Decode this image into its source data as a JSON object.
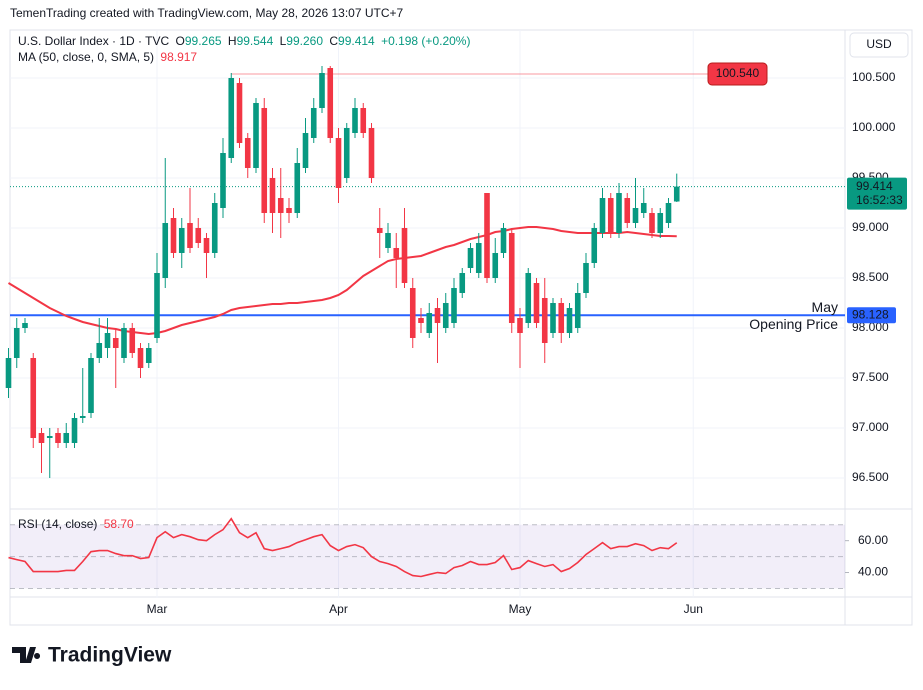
{
  "header": "TemenTrading created with TradingView.com, May 28, 2026 13:07 UTC+7",
  "chart_data": {
    "type": "candlestick",
    "legend": {
      "symbol": "U.S. Dollar Index · 1D · TVC",
      "items": [
        {
          "label": "O",
          "value": 99.265
        },
        {
          "label": "H",
          "value": 99.544
        },
        {
          "label": "L",
          "value": {
            "value": 99.26,
            "label": "99.260"
          }
        },
        {
          "label": "C",
          "value": 99.414
        }
      ],
      "change": "+0.198 (+0.20%)"
    },
    "currency": "USD",
    "categories": [
      null,
      null,
      null,
      null,
      null,
      null,
      null,
      null,
      null,
      null,
      null,
      null,
      null,
      null,
      null,
      null,
      null,
      null,
      "Mar",
      null,
      null,
      null,
      null,
      null,
      null,
      null,
      null,
      null,
      null,
      null,
      null,
      null,
      null,
      null,
      null,
      null,
      null,
      null,
      null,
      null,
      "Apr",
      null,
      null,
      null,
      null,
      null,
      null,
      null,
      null,
      null,
      null,
      null,
      null,
      null,
      null,
      null,
      null,
      null,
      null,
      null,
      null,
      null,
      "May",
      null,
      null,
      null,
      null,
      null,
      null,
      null,
      null,
      null,
      null,
      null,
      null,
      null,
      null,
      null,
      null,
      null,
      null,
      null,
      null,
      "Jun"
    ],
    "open": [
      97.4,
      97.7,
      98.0,
      97.7,
      96.95,
      96.9,
      96.95,
      96.85,
      96.85,
      97.1,
      97.15,
      97.7,
      97.8,
      97.9,
      97.7,
      98.0,
      97.8,
      97.65,
      97.9,
      98.5,
      99.1,
      98.75,
      99.05,
      99.0,
      98.9,
      98.75,
      99.2,
      99.7,
      100.45,
      99.9,
      99.6,
      100.2,
      99.5,
      99.3,
      99.2,
      99.15,
      99.6,
      99.9,
      100.2,
      100.6,
      99.9,
      99.5,
      99.95,
      100.2,
      100.0,
      99.0,
      98.8,
      98.8,
      99.0,
      98.4,
      98.1,
      97.95,
      98.2,
      98.0,
      98.05,
      98.35,
      98.6,
      98.55,
      99.35,
      98.5,
      98.75,
      98.95,
      98.1,
      98.05,
      98.45,
      98.3,
      97.95,
      98.25,
      97.95,
      98.0,
      98.35,
      98.65,
      98.95,
      99.3,
      98.95,
      99.3,
      99.05,
      99.15,
      99.15,
      98.95,
      99.05,
      99.265,
      null,
      null
    ],
    "high": [
      97.8,
      98.1,
      98.1,
      97.75,
      97.0,
      97.0,
      97.0,
      97.05,
      97.15,
      97.6,
      97.75,
      98.1,
      98.1,
      98.0,
      98.05,
      98.05,
      97.85,
      97.85,
      98.75,
      99.7,
      99.2,
      99.1,
      99.4,
      99.1,
      98.95,
      99.35,
      99.9,
      100.55,
      100.5,
      99.95,
      100.3,
      100.3,
      99.6,
      99.6,
      99.3,
      99.8,
      100.1,
      100.3,
      100.62,
      100.62,
      100.0,
      100.05,
      100.3,
      100.25,
      100.05,
      99.2,
      99.05,
      98.95,
      99.2,
      98.5,
      98.2,
      98.25,
      98.3,
      98.35,
      98.5,
      98.6,
      98.85,
      98.95,
      99.35,
      98.9,
      99.05,
      99.0,
      98.2,
      98.6,
      98.5,
      98.5,
      98.3,
      98.3,
      98.25,
      98.45,
      98.75,
      99.05,
      99.4,
      99.35,
      99.45,
      99.35,
      99.5,
      99.4,
      99.2,
      99.2,
      99.3,
      99.544,
      null,
      null
    ],
    "low": [
      97.3,
      97.6,
      97.95,
      96.8,
      96.55,
      96.5,
      96.8,
      96.8,
      96.8,
      97.05,
      97.1,
      97.65,
      97.7,
      97.4,
      97.65,
      97.7,
      97.5,
      97.6,
      97.85,
      98.4,
      98.7,
      98.6,
      98.75,
      98.8,
      98.5,
      98.7,
      99.1,
      99.65,
      99.8,
      99.5,
      99.55,
      99.05,
      98.95,
      98.9,
      99.05,
      99.1,
      99.55,
      99.85,
      100.15,
      99.85,
      99.25,
      99.45,
      99.9,
      99.9,
      99.45,
      98.7,
      98.75,
      98.4,
      98.4,
      97.8,
      97.95,
      97.9,
      97.65,
      97.95,
      98.0,
      98.3,
      98.55,
      98.5,
      98.45,
      98.45,
      98.7,
      97.95,
      97.6,
      98.0,
      98.0,
      97.65,
      97.9,
      97.85,
      97.9,
      97.95,
      98.3,
      98.6,
      98.9,
      98.9,
      98.9,
      99.0,
      99.0,
      99.1,
      98.9,
      98.9,
      99.0,
      99.26,
      null,
      null
    ],
    "close": [
      97.7,
      98.0,
      98.05,
      96.9,
      96.85,
      96.92,
      96.85,
      96.95,
      97.1,
      97.12,
      97.7,
      97.85,
      97.95,
      97.8,
      98.0,
      97.75,
      97.6,
      97.8,
      98.55,
      99.05,
      98.75,
      99.0,
      98.8,
      98.85,
      98.75,
      99.25,
      99.75,
      100.5,
      99.85,
      99.6,
      100.25,
      99.15,
      99.15,
      99.15,
      99.15,
      99.65,
      99.95,
      100.2,
      100.55,
      99.9,
      99.4,
      100.0,
      100.2,
      99.95,
      99.5,
      98.95,
      98.95,
      98.7,
      98.45,
      97.9,
      98.05,
      98.15,
      98.05,
      98.25,
      98.4,
      98.55,
      98.8,
      98.85,
      98.5,
      98.75,
      99.0,
      98.05,
      97.95,
      98.55,
      98.05,
      97.85,
      98.25,
      97.95,
      98.2,
      98.35,
      98.65,
      99.0,
      99.3,
      98.95,
      99.35,
      99.05,
      99.2,
      99.25,
      98.95,
      99.15,
      99.25,
      99.414,
      null,
      null
    ],
    "up_color": "#089981",
    "down_color": "#f23645",
    "ma": {
      "name": "MA (50, close, 0, SMA, 5)",
      "last": 98.917,
      "color": "#f23645",
      "values": [
        98.45,
        98.4,
        98.35,
        98.3,
        98.25,
        98.2,
        98.16,
        98.12,
        98.09,
        98.06,
        98.04,
        98.02,
        98.0,
        97.99,
        97.97,
        97.96,
        97.95,
        97.94,
        97.95,
        97.97,
        98.0,
        98.03,
        98.05,
        98.07,
        98.09,
        98.11,
        98.14,
        98.18,
        98.2,
        98.21,
        98.22,
        98.23,
        98.24,
        98.24,
        98.25,
        98.25,
        98.26,
        98.27,
        98.28,
        98.3,
        98.33,
        98.38,
        98.45,
        98.52,
        98.57,
        98.62,
        98.67,
        98.69,
        98.7,
        98.71,
        98.72,
        98.75,
        98.78,
        98.81,
        98.83,
        98.86,
        98.89,
        98.91,
        98.93,
        98.96,
        98.97,
        98.99,
        99.0,
        99.01,
        99.01,
        99.0,
        98.99,
        98.97,
        98.96,
        98.95,
        98.95,
        98.95,
        98.95,
        98.95,
        98.95,
        98.96,
        98.95,
        98.94,
        98.93,
        98.92,
        98.92,
        98.917,
        null,
        null
      ]
    },
    "ylim": [
      96.2,
      100.98
    ],
    "yticks": [
      {
        "value": 96.5,
        "label": "96.500"
      },
      {
        "value": 97,
        "label": "97.000"
      },
      {
        "value": 97.5,
        "label": "97.500"
      },
      {
        "value": 98,
        "label": "98.000"
      },
      {
        "value": 98.5,
        "label": "98.500"
      },
      {
        "value": 99,
        "label": "99.000"
      },
      {
        "value": 99.5,
        "label": "99.500"
      },
      {
        "value": 100,
        "label": "100.000"
      },
      {
        "value": 100.5,
        "label": "100.500"
      }
    ],
    "last_price": 99.414,
    "countdown": "16:52:33",
    "high_marker": {
      "value": 100.54,
      "label": "100.540",
      "color": "#f23645"
    },
    "opening_line": {
      "value": 98.128,
      "title": "May",
      "subtitle": "Opening Price",
      "color": "#2962ff"
    },
    "rsi": {
      "name": "RSI (14, close)",
      "last": {
        "value": 58.7,
        "label": "58.70"
      },
      "color": "#f23645",
      "values": [
        49.4,
        48.1,
        46.9,
        40.6,
        40.6,
        40.6,
        40.6,
        41.3,
        41.3,
        46.9,
        53.1,
        53.8,
        53.8,
        51.9,
        50.6,
        50.6,
        48.8,
        49.4,
        61.9,
        65.6,
        61.9,
        63.8,
        62.5,
        60.6,
        60,
        63.8,
        66.9,
        73.8,
        65,
        61.9,
        65,
        55,
        53.8,
        55,
        56.3,
        58.8,
        60.6,
        62.5,
        63.8,
        56.9,
        53.8,
        56.3,
        57.5,
        55.6,
        50,
        46.9,
        45.6,
        43.8,
        40.6,
        38.1,
        37.5,
        38.8,
        40,
        39.4,
        43.1,
        44.4,
        46.9,
        45,
        45,
        46.3,
        50.6,
        41.9,
        43.1,
        47.5,
        45.6,
        43.8,
        45,
        40.6,
        42.5,
        46.3,
        51.3,
        55,
        58.8,
        55,
        56.3,
        56.3,
        58.1,
        56.9,
        53.8,
        55.6,
        55,
        58.7,
        null,
        null
      ],
      "ylim": [
        24,
        78
      ],
      "band": [
        30,
        70
      ],
      "mid": 50,
      "yticks": [
        {
          "value": 40,
          "label": "40.00"
        },
        {
          "value": 60,
          "label": "60.00"
        }
      ]
    }
  },
  "footer": {
    "logo": "TradingView"
  }
}
